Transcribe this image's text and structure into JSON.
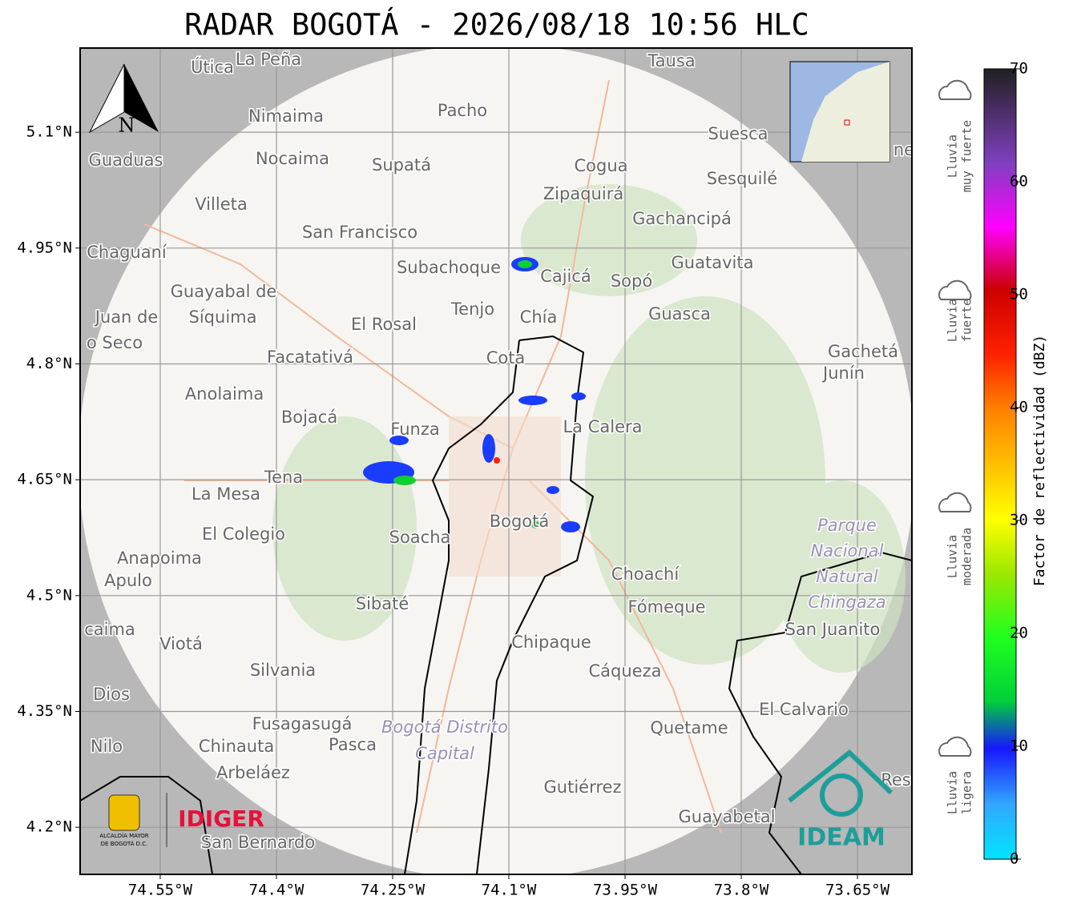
{
  "header": {
    "title": "RADAR BOGOTÁ - 2026/08/18 10:56 HLC"
  },
  "map": {
    "xlim": [
      -74.6534,
      -73.5797
    ],
    "ylim": [
      4.139,
      5.209
    ],
    "xticks": [
      {
        "value": -74.55,
        "label": "74.55°W"
      },
      {
        "value": -74.4,
        "label": "74.4°W"
      },
      {
        "value": -74.25,
        "label": "74.25°W"
      },
      {
        "value": -74.1,
        "label": "74.1°W"
      },
      {
        "value": -73.95,
        "label": "73.95°W"
      },
      {
        "value": -73.8,
        "label": "73.8°W"
      },
      {
        "value": -73.65,
        "label": "73.65°W"
      }
    ],
    "yticks": [
      {
        "value": 5.1,
        "label": "5.1°N"
      },
      {
        "value": 4.95,
        "label": "4.95°N"
      },
      {
        "value": 4.8,
        "label": "4.8°N"
      },
      {
        "value": 4.65,
        "label": "4.65°N"
      },
      {
        "value": 4.5,
        "label": "4.5°N"
      },
      {
        "value": 4.35,
        "label": "4.35°N"
      },
      {
        "value": 4.2,
        "label": "4.2°N"
      }
    ],
    "north": "N",
    "places": [
      "Útica",
      "La Peña",
      "Tausa",
      "Pacho",
      "Nimaima",
      "Suesca",
      "Guaduas",
      "Nocaima",
      "Supatá",
      "Cogua",
      "Sesquilé",
      "Villeta",
      "Zipaquirá",
      "Gachancipá",
      "San Francisco",
      "Chaguaní",
      "Guatavita",
      "Subachoque",
      "Cajicá",
      "Sopó",
      "Guayabal de",
      "Síquima",
      "Juan de",
      "o Seco",
      "Tenjo",
      "Chía",
      "El Rosal",
      "Guasca",
      "Facatativá",
      "Cota",
      "Gachetá",
      "Junín",
      "Anolaima",
      "Bojacá",
      "Funza",
      "La Calera",
      "Tena",
      "La Mesa",
      "El Colegio",
      "Soacha",
      "Bogotá",
      "Parque",
      "Nacional",
      "Natural",
      "Chingaza",
      "Anapoima",
      "Apulo",
      "Choachí",
      "Sibaté",
      "Fómeque",
      "San Juanito",
      "caima",
      "Viotá",
      "Chipaque",
      "Silvania",
      "Cáqueza",
      "Dios",
      "El Calvario",
      "Fusagasugá",
      "Bogotá Distrito",
      "Capital",
      "Quetame",
      "Nilo",
      "Chinauta",
      "Pasca",
      "Arbeláez",
      "Gutiérrez",
      "Guayabetal",
      "San Bernardo",
      "Res",
      "ne"
    ],
    "logos": {
      "idiger": "IDIGER",
      "ideam": "IDEAM",
      "alcaldia_1": "ALCALDÍA MAYOR",
      "alcaldia_2": "DE BOGOTÁ D.C."
    }
  },
  "colorbar": {
    "lim": [
      0,
      70
    ],
    "ticks": [
      0,
      10,
      20,
      30,
      40,
      50,
      60,
      70
    ],
    "label": "Factor de reflectividad (dBZ)"
  },
  "rain_legend": [
    [
      "Lluvia",
      "muy fuerte"
    ],
    [
      "Lluvia",
      "fuerte"
    ],
    [
      "Lluvia",
      "moderada"
    ],
    [
      "Lluvia",
      "ligera"
    ]
  ]
}
